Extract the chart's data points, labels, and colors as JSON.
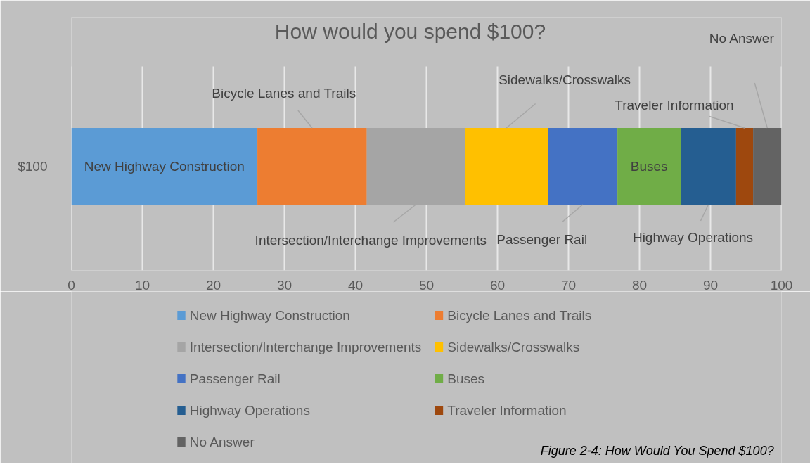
{
  "chart_data": {
    "type": "bar",
    "orientation": "horizontal",
    "stacked": true,
    "title": "How would you spend $100?",
    "categories": [
      "$100"
    ],
    "series": [
      {
        "name": "New Highway Construction",
        "color": "#5b9bd5",
        "values": [
          26.2
        ]
      },
      {
        "name": "Bicycle Lanes and Trails",
        "color": "#ed7d31",
        "values": [
          15.4
        ]
      },
      {
        "name": "Intersection/Interchange Improvements",
        "color": "#a5a5a5",
        "values": [
          13.8
        ]
      },
      {
        "name": "Sidewalks/Crosswalks",
        "color": "#ffc000",
        "values": [
          11.7
        ]
      },
      {
        "name": "Passenger Rail",
        "color": "#4472c4",
        "values": [
          9.8
        ]
      },
      {
        "name": "Buses",
        "color": "#70ad47",
        "values": [
          8.9
        ]
      },
      {
        "name": "Highway Operations",
        "color": "#255e91",
        "values": [
          7.8
        ]
      },
      {
        "name": "Traveler Information",
        "color": "#9e480e",
        "values": [
          2.4
        ]
      },
      {
        "name": "No Answer",
        "color": "#636363",
        "values": [
          4.0
        ]
      }
    ],
    "xlim": [
      0,
      100
    ],
    "xticks": [
      0,
      10,
      20,
      30,
      40,
      50,
      60,
      70,
      80,
      90,
      100
    ],
    "grid": "x",
    "legend": "bottom",
    "annotations": [
      "Figure 2-4: How Would You Spend $100?"
    ]
  }
}
